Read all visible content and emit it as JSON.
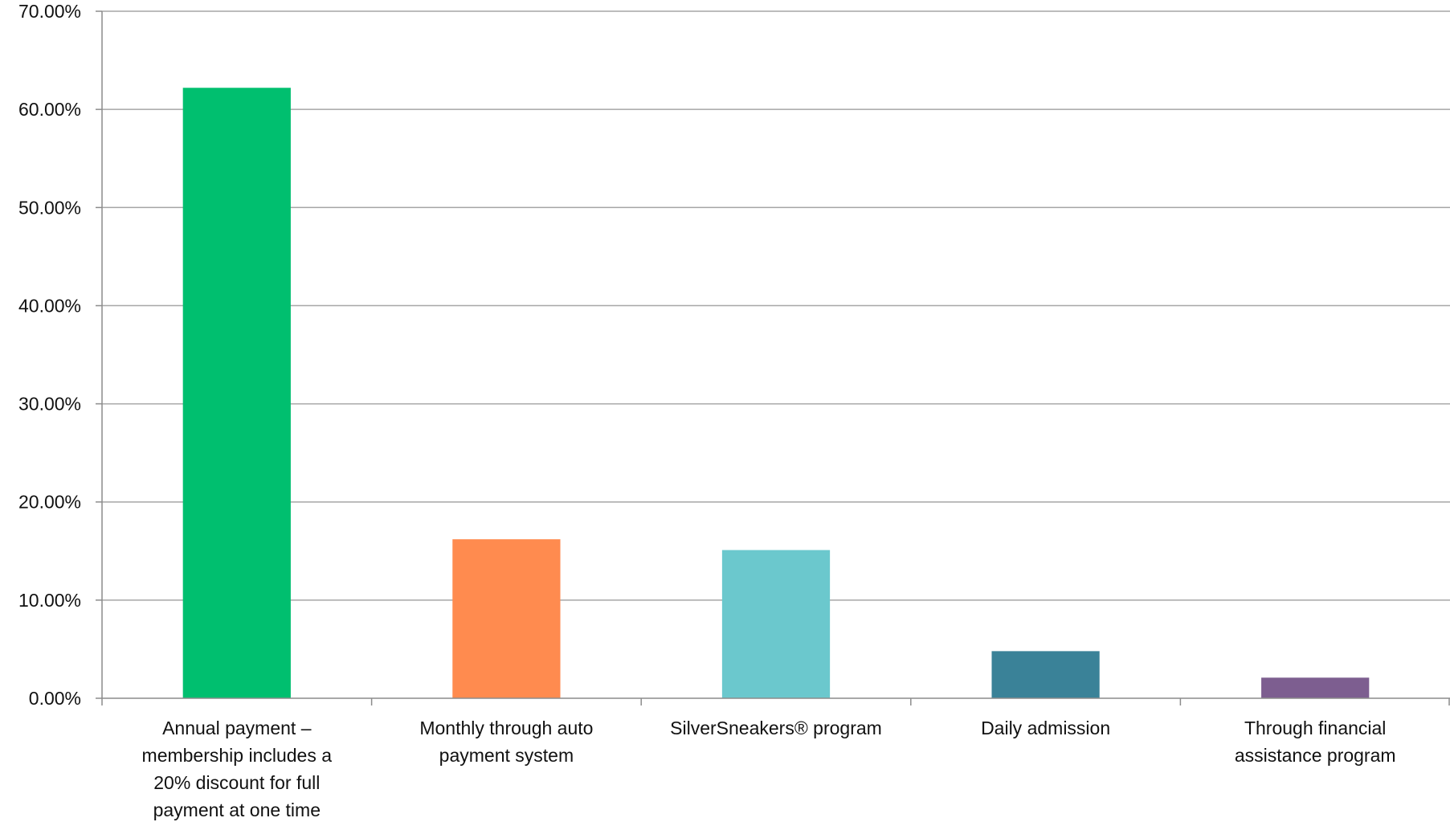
{
  "chart_data": {
    "type": "bar",
    "title": "",
    "xlabel": "",
    "ylabel": "",
    "ylim": [
      0,
      70
    ],
    "y_ticks": [
      "0.00%",
      "10.00%",
      "20.00%",
      "30.00%",
      "40.00%",
      "50.00%",
      "60.00%",
      "70.00%"
    ],
    "grid": true,
    "legend": "none",
    "categories": [
      [
        "Annual payment –",
        "membership includes a",
        "20% discount for full",
        "payment at one time"
      ],
      [
        "Monthly through auto",
        "payment system"
      ],
      [
        "SilverSneakers® program"
      ],
      [
        "Daily admission"
      ],
      [
        "Through financial",
        "assistance program"
      ]
    ],
    "values": [
      62.2,
      16.2,
      15.1,
      4.8,
      2.1
    ],
    "colors": [
      "#00bf6f",
      "#ff8b4f",
      "#6bc8cd",
      "#3a8298",
      "#7d5e90"
    ]
  }
}
